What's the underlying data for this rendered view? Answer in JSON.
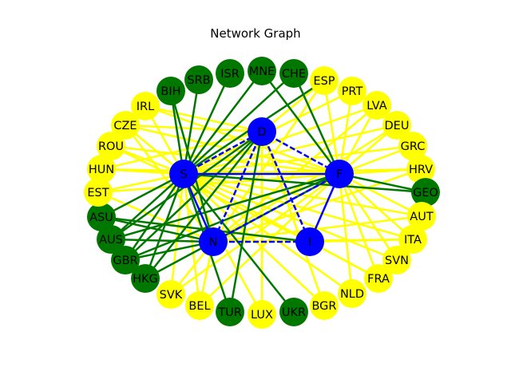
{
  "title": "Network Graph",
  "colors": {
    "hub": "#0000ff",
    "green_node": "#007800",
    "yellow_node": "#ffff00",
    "green_edge": "#007800",
    "yellow_edge": "#ffff00",
    "blue_edge": "#0000ff",
    "background": "#ffffff"
  },
  "hubs": [
    {
      "id": "D",
      "label": "D"
    },
    {
      "id": "S",
      "label": "S"
    },
    {
      "id": "F",
      "label": "F"
    },
    {
      "id": "N",
      "label": "N"
    },
    {
      "id": "I",
      "label": "I"
    }
  ],
  "countries": [
    {
      "id": "ESP",
      "label": "ESP",
      "color": "yellow"
    },
    {
      "id": "PRT",
      "label": "PRT",
      "color": "yellow"
    },
    {
      "id": "LVA",
      "label": "LVA",
      "color": "yellow"
    },
    {
      "id": "DEU",
      "label": "DEU",
      "color": "yellow"
    },
    {
      "id": "GRC",
      "label": "GRC",
      "color": "yellow"
    },
    {
      "id": "HRV",
      "label": "HRV",
      "color": "yellow"
    },
    {
      "id": "GEO",
      "label": "GEO",
      "color": "green"
    },
    {
      "id": "AUT",
      "label": "AUT",
      "color": "yellow"
    },
    {
      "id": "ITA",
      "label": "ITA",
      "color": "yellow"
    },
    {
      "id": "SVN",
      "label": "SVN",
      "color": "yellow"
    },
    {
      "id": "FRA",
      "label": "FRA",
      "color": "yellow"
    },
    {
      "id": "NLD",
      "label": "NLD",
      "color": "yellow"
    },
    {
      "id": "BGR",
      "label": "BGR",
      "color": "yellow"
    },
    {
      "id": "UKR",
      "label": "UKR",
      "color": "green"
    },
    {
      "id": "LUX",
      "label": "LUX",
      "color": "yellow"
    },
    {
      "id": "TUR",
      "label": "TUR",
      "color": "green"
    },
    {
      "id": "BEL",
      "label": "BEL",
      "color": "yellow"
    },
    {
      "id": "SVK",
      "label": "SVK",
      "color": "yellow"
    },
    {
      "id": "HKG",
      "label": "HKG",
      "color": "green"
    },
    {
      "id": "GBR",
      "label": "GBR",
      "color": "green"
    },
    {
      "id": "AUS",
      "label": "AUS",
      "color": "green"
    },
    {
      "id": "ASU",
      "label": "ASU",
      "color": "green"
    },
    {
      "id": "EST",
      "label": "EST",
      "color": "yellow"
    },
    {
      "id": "HUN",
      "label": "HUN",
      "color": "yellow"
    },
    {
      "id": "ROU",
      "label": "ROU",
      "color": "yellow"
    },
    {
      "id": "CZE",
      "label": "CZE",
      "color": "yellow"
    },
    {
      "id": "IRL",
      "label": "IRL",
      "color": "yellow"
    },
    {
      "id": "BIH",
      "label": "BIH",
      "color": "green"
    },
    {
      "id": "SRB",
      "label": "SRB",
      "color": "green"
    },
    {
      "id": "ISR",
      "label": "ISR",
      "color": "green"
    },
    {
      "id": "MNE",
      "label": "MNE",
      "color": "green"
    },
    {
      "id": "CHE",
      "label": "CHE",
      "color": "green"
    }
  ],
  "edges": [
    [
      "S",
      "D",
      "blue"
    ],
    [
      "S",
      "F",
      "blue"
    ],
    [
      "S",
      "N",
      "blue"
    ],
    [
      "D",
      "I",
      "blue"
    ],
    [
      "D",
      "N",
      "blue"
    ],
    [
      "F",
      "N",
      "blue"
    ],
    [
      "F",
      "I",
      "blue"
    ],
    [
      "N",
      "I",
      "blue"
    ],
    [
      "S",
      "I",
      "yellow"
    ],
    [
      "D",
      "F",
      "blue"
    ],
    [
      "S",
      "ESP",
      "green"
    ],
    [
      "S",
      "PRT",
      "yellow"
    ],
    [
      "S",
      "LVA",
      "yellow"
    ],
    [
      "S",
      "DEU",
      "yellow"
    ],
    [
      "S",
      "GRC",
      "yellow"
    ],
    [
      "S",
      "HRV",
      "yellow"
    ],
    [
      "S",
      "GEO",
      "green"
    ],
    [
      "S",
      "AUT",
      "yellow"
    ],
    [
      "S",
      "ITA",
      "yellow"
    ],
    [
      "S",
      "SVN",
      "yellow"
    ],
    [
      "S",
      "FRA",
      "yellow"
    ],
    [
      "S",
      "NLD",
      "yellow"
    ],
    [
      "S",
      "BGR",
      "yellow"
    ],
    [
      "S",
      "UKR",
      "green"
    ],
    [
      "S",
      "LUX",
      "yellow"
    ],
    [
      "S",
      "TUR",
      "green"
    ],
    [
      "S",
      "BEL",
      "yellow"
    ],
    [
      "S",
      "SVK",
      "yellow"
    ],
    [
      "S",
      "HKG",
      "green"
    ],
    [
      "S",
      "GBR",
      "green"
    ],
    [
      "S",
      "AUS",
      "green"
    ],
    [
      "S",
      "ASU",
      "green"
    ],
    [
      "S",
      "EST",
      "yellow"
    ],
    [
      "S",
      "HUN",
      "yellow"
    ],
    [
      "S",
      "ROU",
      "yellow"
    ],
    [
      "S",
      "CZE",
      "yellow"
    ],
    [
      "S",
      "IRL",
      "yellow"
    ],
    [
      "S",
      "BIH",
      "green"
    ],
    [
      "S",
      "SRB",
      "green"
    ],
    [
      "S",
      "ISR",
      "green"
    ],
    [
      "S",
      "MNE",
      "green"
    ],
    [
      "S",
      "CHE",
      "green"
    ],
    [
      "F",
      "CHE",
      "green"
    ],
    [
      "F",
      "ESP",
      "yellow"
    ],
    [
      "F",
      "PRT",
      "yellow"
    ],
    [
      "F",
      "LVA",
      "yellow"
    ],
    [
      "F",
      "DEU",
      "yellow"
    ],
    [
      "F",
      "GRC",
      "yellow"
    ],
    [
      "F",
      "HRV",
      "yellow"
    ],
    [
      "F",
      "GEO",
      "green"
    ],
    [
      "F",
      "AUT",
      "yellow"
    ],
    [
      "F",
      "ITA",
      "yellow"
    ],
    [
      "F",
      "SVN",
      "yellow"
    ],
    [
      "F",
      "FRA",
      "yellow"
    ],
    [
      "F",
      "NLD",
      "yellow"
    ],
    [
      "F",
      "BEL",
      "yellow"
    ],
    [
      "F",
      "SVK",
      "yellow"
    ],
    [
      "F",
      "GBR",
      "green"
    ],
    [
      "F",
      "HKG",
      "green"
    ],
    [
      "F",
      "AUS",
      "green"
    ],
    [
      "F",
      "EST",
      "yellow"
    ],
    [
      "F",
      "HUN",
      "yellow"
    ],
    [
      "F",
      "ROU",
      "yellow"
    ],
    [
      "F",
      "CZE",
      "yellow"
    ],
    [
      "F",
      "IRL",
      "yellow"
    ],
    [
      "F",
      "MNE",
      "green"
    ],
    [
      "N",
      "ASU",
      "green"
    ],
    [
      "N",
      "AUS",
      "green"
    ],
    [
      "N",
      "GBR",
      "green"
    ],
    [
      "N",
      "ESP",
      "yellow"
    ],
    [
      "N",
      "LVA",
      "yellow"
    ],
    [
      "N",
      "AUT",
      "yellow"
    ],
    [
      "N",
      "ITA",
      "yellow"
    ],
    [
      "N",
      "BEL",
      "yellow"
    ],
    [
      "N",
      "BIH",
      "green"
    ],
    [
      "N",
      "CZE",
      "yellow"
    ],
    [
      "N",
      "SVK",
      "yellow"
    ],
    [
      "N",
      "DEU",
      "yellow"
    ],
    [
      "N",
      "HRV",
      "yellow"
    ],
    [
      "N",
      "EST",
      "yellow"
    ],
    [
      "I",
      "ITA",
      "yellow"
    ],
    [
      "I",
      "ASU",
      "green"
    ],
    [
      "I",
      "FRA",
      "yellow"
    ],
    [
      "I",
      "ROU",
      "yellow"
    ],
    [
      "D",
      "ESP",
      "yellow"
    ],
    [
      "D",
      "GBR",
      "green"
    ],
    [
      "D",
      "IRL",
      "yellow"
    ],
    [
      "D",
      "BGR",
      "yellow"
    ],
    [
      "D",
      "LUX",
      "yellow"
    ],
    [
      "D",
      "HUN",
      "yellow"
    ],
    [
      "D",
      "AUS",
      "green"
    ],
    [
      "D",
      "TUR",
      "green"
    ],
    [
      "D",
      "CZE",
      "yellow"
    ],
    [
      "D",
      "HKG",
      "green"
    ]
  ]
}
